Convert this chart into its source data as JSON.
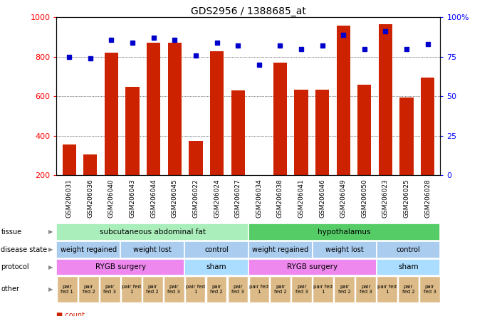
{
  "title": "GDS2956 / 1388685_at",
  "samples": [
    "GSM206031",
    "GSM206036",
    "GSM206040",
    "GSM206043",
    "GSM206044",
    "GSM206045",
    "GSM206022",
    "GSM206024",
    "GSM206027",
    "GSM206034",
    "GSM206038",
    "GSM206041",
    "GSM206046",
    "GSM206049",
    "GSM206050",
    "GSM206023",
    "GSM206025",
    "GSM206028"
  ],
  "counts": [
    355,
    305,
    820,
    648,
    870,
    870,
    375,
    830,
    630,
    110,
    770,
    635,
    635,
    960,
    660,
    965,
    595,
    695
  ],
  "percentiles": [
    75,
    74,
    86,
    84,
    87,
    86,
    76,
    84,
    82,
    70,
    82,
    80,
    82,
    89,
    80,
    91,
    80,
    83
  ],
  "bar_color": "#cc2200",
  "dot_color": "#0000cc",
  "yticks_left": [
    200,
    400,
    600,
    800,
    1000
  ],
  "yticks_right": [
    0,
    25,
    50,
    75,
    100
  ],
  "ylim_left": [
    200,
    1000
  ],
  "ylim_right": [
    0,
    100
  ],
  "tissue_spans": [
    {
      "label": "subcutaneous abdominal fat",
      "start": 0,
      "end": 9,
      "color": "#aaeebb"
    },
    {
      "label": "hypothalamus",
      "start": 9,
      "end": 18,
      "color": "#55cc66"
    }
  ],
  "disease_spans": [
    {
      "label": "weight regained",
      "start": 0,
      "end": 3,
      "color": "#aaccee"
    },
    {
      "label": "weight lost",
      "start": 3,
      "end": 6,
      "color": "#aaccee"
    },
    {
      "label": "control",
      "start": 6,
      "end": 9,
      "color": "#aaccee"
    },
    {
      "label": "weight regained",
      "start": 9,
      "end": 12,
      "color": "#aaccee"
    },
    {
      "label": "weight lost",
      "start": 12,
      "end": 15,
      "color": "#aaccee"
    },
    {
      "label": "control",
      "start": 15,
      "end": 18,
      "color": "#aaccee"
    }
  ],
  "protocol_spans": [
    {
      "label": "RYGB surgery",
      "start": 0,
      "end": 6,
      "color": "#ee88ee"
    },
    {
      "label": "sham",
      "start": 6,
      "end": 9,
      "color": "#aaddff"
    },
    {
      "label": "RYGB surgery",
      "start": 9,
      "end": 15,
      "color": "#ee88ee"
    },
    {
      "label": "sham",
      "start": 15,
      "end": 18,
      "color": "#aaddff"
    }
  ],
  "other_labels": [
    "pair\nfed 1",
    "pair\nfed 2",
    "pair\nfed 3",
    "pair fed\n1",
    "pair\nfed 2",
    "pair\nfed 3",
    "pair fed\n1",
    "pair\nfed 2",
    "pair\nfed 3",
    "pair fed\n1",
    "pair\nfed 2",
    "pair\nfed 3",
    "pair fed\n1",
    "pair\nfed 2",
    "pair\nfed 3",
    "pair fed\n1",
    "pair\nfed 2",
    "pair\nfed 3"
  ],
  "other_color": "#ddbb88"
}
